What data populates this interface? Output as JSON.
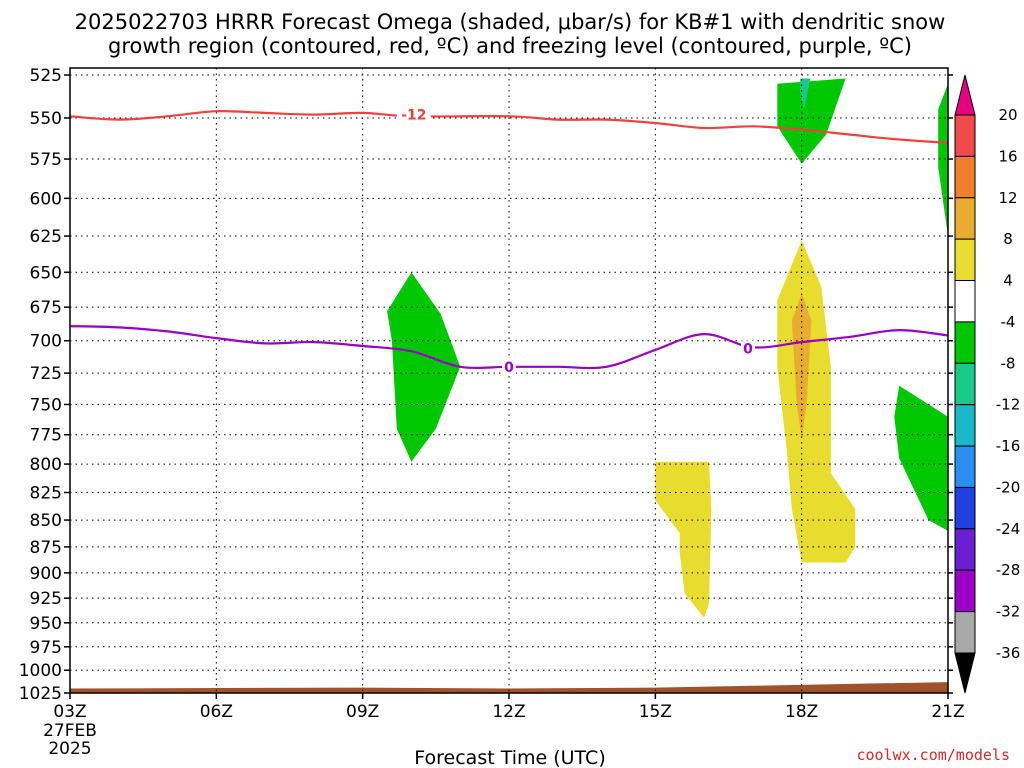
{
  "title_line1": "2025022703 HRRR Forecast Omega (shaded, μbar/s) for KB#1 with dendritic snow",
  "title_line2": "growth region (contoured, red, ºC) and freezing level (contoured, purple, ºC)",
  "credit": "coolwx.com/models",
  "chart_data": {
    "type": "contour",
    "title": "2025022703 HRRR Forecast Omega (shaded, μbar/s) for KB#1 with dendritic snow growth region (contoured, red, ºC) and freezing level (contoured, purple, ºC)",
    "xlabel": "Forecast Time (UTC)",
    "ylabel": "",
    "xlim": [
      3,
      21
    ],
    "ylim": [
      1025,
      525
    ],
    "y_scale": "pressure (reversed)",
    "grid": true,
    "x_ticks": [
      {
        "value": 3,
        "label": "03Z",
        "sub1": "27FEB",
        "sub2": "2025"
      },
      {
        "value": 6,
        "label": "06Z"
      },
      {
        "value": 9,
        "label": "09Z"
      },
      {
        "value": 12,
        "label": "12Z"
      },
      {
        "value": 15,
        "label": "15Z"
      },
      {
        "value": 18,
        "label": "18Z"
      },
      {
        "value": 21,
        "label": "21Z"
      }
    ],
    "y_ticks": [
      525,
      550,
      575,
      600,
      625,
      650,
      675,
      700,
      725,
      750,
      775,
      800,
      825,
      850,
      875,
      900,
      925,
      950,
      975,
      1000,
      1025
    ],
    "colorbar": {
      "tick_labels": [
        "20",
        "16",
        "12",
        "8",
        "4",
        "-4",
        "-8",
        "-12",
        "-16",
        "-20",
        "-24",
        "-28",
        "-32",
        "-36"
      ],
      "colors": [
        "#e8007e",
        "#f04a4a",
        "#f07e2a",
        "#e8ac30",
        "#e8dc2e",
        "#ffffff",
        "#00c800",
        "#18c98a",
        "#18b8c8",
        "#2890f0",
        "#2040e0",
        "#6a1fd0",
        "#9a00c8",
        "#a8a8a8",
        "#000000"
      ]
    },
    "series": [
      {
        "name": "-12",
        "kind": "contour_line",
        "color": "#f04040",
        "points": [
          [
            3,
            549
          ],
          [
            4,
            551
          ],
          [
            5,
            549
          ],
          [
            6,
            546
          ],
          [
            7,
            547
          ],
          [
            8,
            548
          ],
          [
            9,
            547
          ],
          [
            10,
            549
          ],
          [
            12,
            549
          ],
          [
            13,
            551
          ],
          [
            14,
            551
          ],
          [
            15,
            553
          ],
          [
            16,
            556
          ],
          [
            17,
            555
          ],
          [
            18,
            557
          ],
          [
            19,
            560
          ],
          [
            20,
            563
          ],
          [
            21,
            565
          ]
        ]
      },
      {
        "name": "0",
        "kind": "contour_line",
        "color": "#9a00c8",
        "points": [
          [
            3,
            689
          ],
          [
            4,
            690
          ],
          [
            5,
            693
          ],
          [
            6,
            698
          ],
          [
            7,
            702
          ],
          [
            8,
            701
          ],
          [
            9,
            704
          ],
          [
            10,
            708
          ],
          [
            11,
            720
          ],
          [
            12,
            720
          ],
          [
            13,
            720
          ],
          [
            14,
            720
          ],
          [
            15,
            707
          ],
          [
            16,
            695
          ],
          [
            17,
            705
          ],
          [
            18,
            701
          ],
          [
            19,
            697
          ],
          [
            20,
            692
          ],
          [
            21,
            696
          ]
        ]
      },
      {
        "name": "-4",
        "kind": "shaded_region",
        "color": "#00c800",
        "regions": [
          [
            [
              9.5,
              678
            ],
            [
              10,
              650
            ],
            [
              10.6,
              680
            ],
            [
              11,
              720
            ],
            [
              10.5,
              770
            ],
            [
              10,
              798
            ],
            [
              9.7,
              770
            ],
            [
              9.6,
              700
            ]
          ],
          [
            [
              17.5,
              530
            ],
            [
              18.9,
              527
            ],
            [
              18.5,
              560
            ],
            [
              18,
              578
            ],
            [
              17.5,
              555
            ]
          ],
          [
            [
              20,
              735
            ],
            [
              21,
              760
            ],
            [
              21,
              860
            ],
            [
              20.6,
              850
            ],
            [
              20,
              795
            ],
            [
              19.9,
              760
            ]
          ],
          [
            [
              21,
              530
            ],
            [
              20.8,
              545
            ],
            [
              20.8,
              580
            ],
            [
              21,
              625
            ]
          ]
        ]
      },
      {
        "name": "-8",
        "kind": "shaded_region",
        "color": "#18c98a",
        "regions": [
          [
            [
              17.97,
              527
            ],
            [
              18.18,
              527
            ],
            [
              18.05,
              545
            ],
            [
              17.97,
              535
            ]
          ]
        ]
      },
      {
        "name": "4",
        "kind": "shaded_region",
        "color": "#e8dc2e",
        "regions": [
          [
            [
              15,
              798
            ],
            [
              16.1,
              798
            ],
            [
              16.15,
              840
            ],
            [
              16.1,
              930
            ],
            [
              16,
              945
            ],
            [
              15.6,
              920
            ],
            [
              15.5,
              880
            ],
            [
              15.5,
              862
            ],
            [
              15,
              832
            ]
          ],
          [
            [
              17.5,
              670
            ],
            [
              18,
              628
            ],
            [
              18.4,
              660
            ],
            [
              18.6,
              720
            ],
            [
              18.6,
              808
            ],
            [
              19.1,
              840
            ],
            [
              19.1,
              875
            ],
            [
              18.9,
              890
            ],
            [
              18,
              890
            ],
            [
              17.8,
              840
            ],
            [
              17.7,
              790
            ],
            [
              17.5,
              720
            ]
          ]
        ]
      },
      {
        "name": "8",
        "kind": "shaded_region",
        "color": "#e8ac30",
        "regions": [
          [
            [
              17.8,
              685
            ],
            [
              18,
              665
            ],
            [
              18.2,
              685
            ],
            [
              18.1,
              750
            ],
            [
              18,
              778
            ],
            [
              17.9,
              750
            ]
          ]
        ]
      },
      {
        "name": "terrain",
        "kind": "shaded_region",
        "color": "#a0522d",
        "regions": [
          [
            [
              3,
              1025
            ],
            [
              3,
              1020
            ],
            [
              9,
              1019
            ],
            [
              12,
              1020
            ],
            [
              15,
              1019
            ],
            [
              17,
              1017
            ],
            [
              19,
              1015
            ],
            [
              21,
              1013
            ],
            [
              21,
              1025
            ]
          ]
        ]
      }
    ],
    "contour_labels": [
      {
        "text": "-12",
        "x": 10.05,
        "y": 548,
        "color": "#f04040"
      },
      {
        "text": "0",
        "x": 12,
        "y": 720,
        "color": "#9a00c8"
      },
      {
        "text": "0",
        "x": 16.9,
        "y": 706,
        "color": "#9a00c8"
      }
    ]
  }
}
